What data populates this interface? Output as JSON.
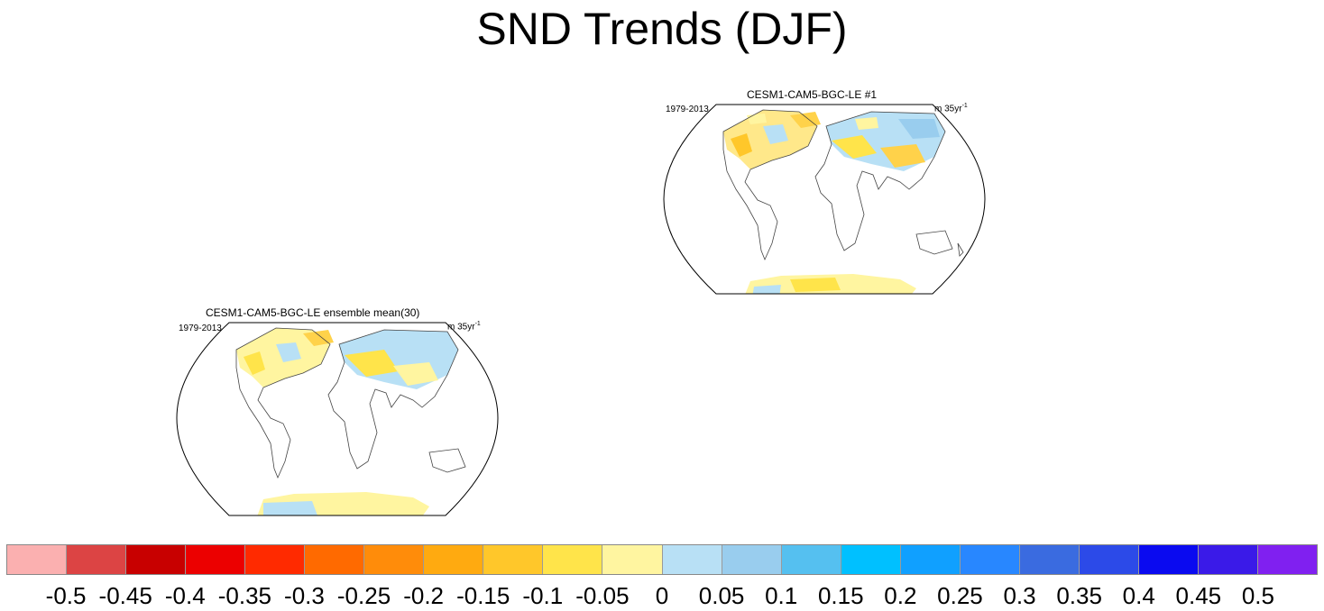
{
  "figure": {
    "title": "SND Trends (DJF)"
  },
  "panels": [
    {
      "title": "CESM1-CAM5-BGC-LE #1",
      "left": "1979-2013",
      "units_base": "m 35yr",
      "units_exp": "-1"
    },
    {
      "title": "CESM1-CAM5-BGC-LE ensemble mean(30)",
      "left": "1979-2013",
      "units_base": "m 35yr",
      "units_exp": "-1"
    }
  ],
  "colorbar": {
    "labels": [
      "-0.5",
      "-0.45",
      "-0.4",
      "-0.35",
      "-0.3",
      "-0.25",
      "-0.2",
      "-0.15",
      "-0.1",
      "-0.05",
      "0",
      "0.05",
      "0.1",
      "0.15",
      "0.2",
      "0.25",
      "0.3",
      "0.35",
      "0.4",
      "0.45",
      "0.5"
    ],
    "colors": [
      "#fbb0b0",
      "#dc4444",
      "#c80000",
      "#ec0000",
      "#ff2a00",
      "#ff6a00",
      "#ff8c0a",
      "#ffaa10",
      "#ffc72a",
      "#ffe44a",
      "#fff5a0",
      "#b8e0f5",
      "#99cdee",
      "#55c0f0",
      "#00c0ff",
      "#10a0ff",
      "#2887ff",
      "#3a6be0",
      "#2c4ae8",
      "#0a0af0",
      "#3a1ae8",
      "#8020f0"
    ]
  }
}
